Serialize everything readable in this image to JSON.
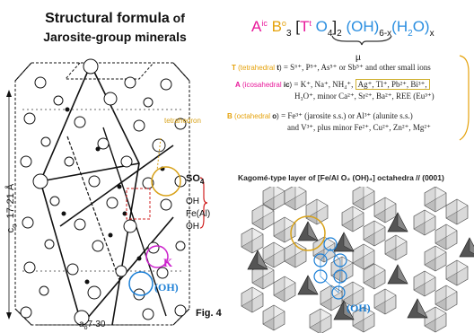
{
  "title": {
    "line1a": "Structural formula",
    "line1b": " of",
    "line2": "Jarosite-group minerals"
  },
  "formula": {
    "A": "A",
    "A_sup": "ic",
    "B": "B",
    "B_sup": "o",
    "B_sub": "3",
    "open_bracket": "[",
    "T": "T",
    "T_sup": "t",
    "O4": "O",
    "O4_sub": "4",
    "close_bracket": "]",
    "close_sub": "2",
    "OH": "(OH)",
    "OH_sub": "6-x",
    "H2O_open": "(H",
    "H2O_sub": "2",
    "H2O_close": "O)",
    "x_sub": "x",
    "mu": "µ"
  },
  "sites": {
    "T": {
      "key": "T",
      "name": "tetrahedral",
      "sym": "t",
      "text": "= S⁶⁺, P⁵⁺, As⁵⁺ or Sb⁵⁺ and other small ions"
    },
    "A": {
      "key": "A",
      "name": "icosahedral",
      "sym": "ic",
      "text1": "= K⁺, Na⁺, NH₄⁺,",
      "boxed": "Ag⁺, Tl⁺, Pb²⁺, Bi³⁺,",
      "text2": "H₃O⁺, minor Ca²⁺, Sr²⁺, Ba²⁺, REE (Eu³⁺)"
    },
    "B": {
      "key": "B",
      "name": "octahedral",
      "sym": "o",
      "text1": "= Fe³⁺ (jarosite s.s.) or Al³⁺ (alunite s.s.)",
      "text2": "and V³⁺, plus minor Fe²⁺, Cu²⁺, Zn²⁺, Mg²⁺"
    }
  },
  "kagome": {
    "caption": "Kagomé-type layer of [Fe/Al O₂ (OH)₄] octahedra // (0001)",
    "oh_label": "(OH)"
  },
  "crystal": {
    "tetrahedron": "tetrahedron",
    "so4": "SO",
    "so4_sub": "4",
    "oh_upper": "OH",
    "feal": "Fe(Al)",
    "oh_lower": "OH",
    "k_label": "K",
    "oh_label": "(OH)",
    "co_label": "c",
    "co_sub": "o",
    "co_value": "17·21 Å",
    "ao_label": "a",
    "ao_sub": "o",
    "ao_value": "7·30"
  },
  "fig_label": "Fig. 4",
  "colors": {
    "A": "#e8189a",
    "B": "#e5a20c",
    "T": "#e8189a",
    "O": "#2a8ee0",
    "K": "#cc22cc",
    "OH": "#1b7fd6",
    "orange_circle": "#d8a21a",
    "red_brace": "#d02020"
  }
}
